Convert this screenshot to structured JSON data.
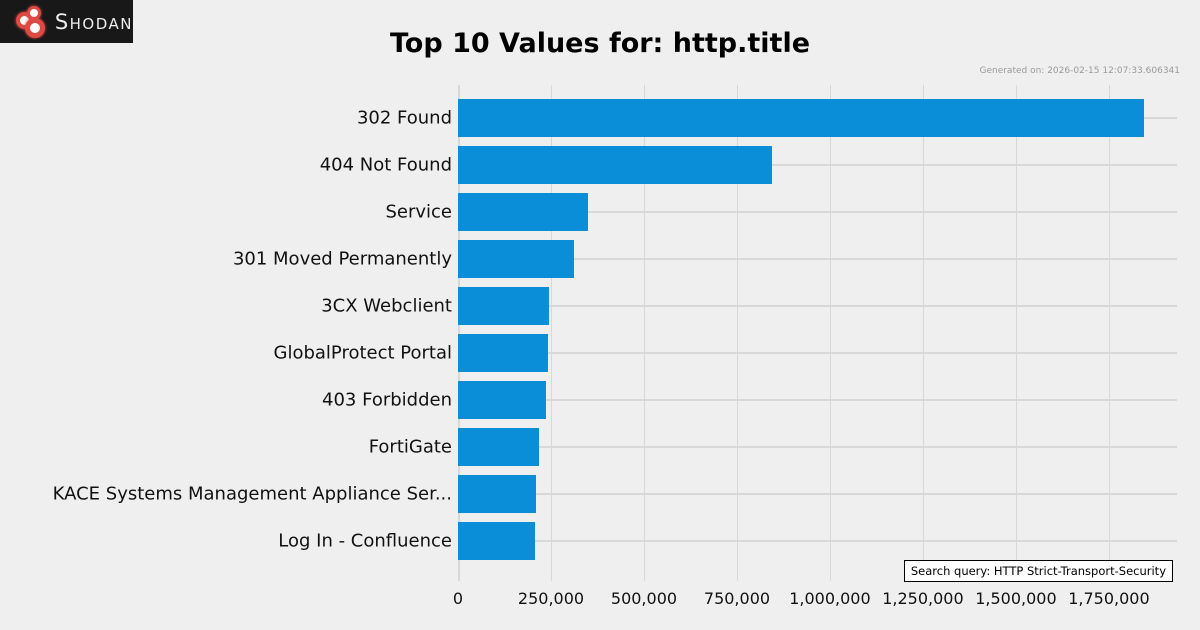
{
  "header": {
    "brand": "Shodan",
    "title": "Top 10 Values for: http.title",
    "generated_on": "Generated on: 2026-02-15 12:07:33.606341"
  },
  "chart_data": {
    "type": "bar",
    "orientation": "horizontal",
    "title": "Top 10 Values for: http.title",
    "categories": [
      "302 Found",
      "404 Not Found",
      "Service",
      "301 Moved Permanently",
      "3CX Webclient",
      "GlobalProtect Portal",
      "403 Forbidden",
      "FortiGate",
      "KACE Systems Management Appliance Ser...",
      "Log In - Confluence"
    ],
    "values": [
      1845000,
      845000,
      350000,
      312000,
      245000,
      243000,
      237000,
      218000,
      210000,
      207000
    ],
    "xlim": [
      0,
      1933000
    ],
    "xticks": [
      0,
      250000,
      500000,
      750000,
      1000000,
      1250000,
      1500000,
      1750000
    ],
    "xtick_labels": [
      "0",
      "250,000",
      "500,000",
      "750,000",
      "1,000,000",
      "1,250,000",
      "1,500,000",
      "1,750,000"
    ],
    "grid": true,
    "legend": false,
    "bar_color": "#0a8ed8"
  },
  "footer": {
    "search_query": "Search query: HTTP Strict-Transport-Security"
  },
  "colors": {
    "background": "#efefef",
    "bar": "#0a8ed8",
    "gridline": "#d8d8d8",
    "logo_background": "#181818",
    "logo_red": "#dd4a43",
    "text": "#000000",
    "muted_text": "#9a9a9a"
  }
}
